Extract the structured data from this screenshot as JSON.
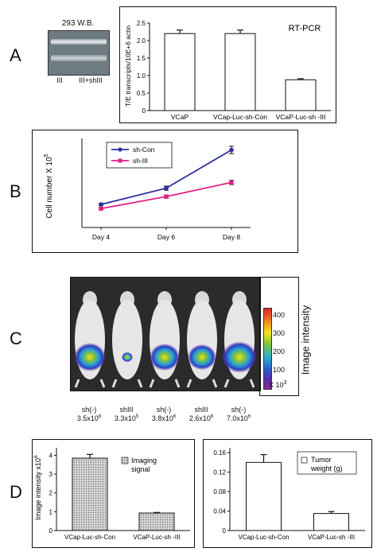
{
  "panel_letters": {
    "a": "A",
    "b": "B",
    "c": "C",
    "d": "D"
  },
  "western_blot": {
    "title": "293 W.B.",
    "lanes": [
      "III",
      "III+shIII"
    ]
  },
  "colors": {
    "sh_con": "#2b2f9e",
    "sh_iii": "#e0208a",
    "bar_fill": "#ffffff",
    "bar_stroke": "#111111"
  },
  "imaging": {
    "colorbar_label": "Image intensity",
    "colorbar_unit": "X 10",
    "colorbar_exp": "3",
    "colorbar_ticks": [
      "400",
      "300",
      "200",
      "100"
    ],
    "mice": [
      {
        "label": "sh(-)",
        "value": "3.5x10",
        "exp": "6"
      },
      {
        "label": "shIII",
        "value": "3.3x10",
        "exp": "5"
      },
      {
        "label": "sh(-)",
        "value": "3.8x10",
        "exp": "6"
      },
      {
        "label": "shIII",
        "value": "2.6x10",
        "exp": "6"
      },
      {
        "label": "sh(-)",
        "value": "7.0x10",
        "exp": "6"
      }
    ]
  },
  "chart_data": [
    {
      "id": "rt-pcr",
      "type": "bar",
      "title": "RT-PCR",
      "ylabel": "T/E transcripts/10E+6 actin",
      "categories": [
        "VCaP",
        "VCap-Luc-sh-Con",
        "VCaP-Luc-sh -III"
      ],
      "values": [
        2.2,
        2.2,
        0.88
      ],
      "errors": [
        0.1,
        0.1,
        0.03
      ],
      "ylim": [
        0,
        2.5
      ],
      "yticks": [
        "0",
        "0.5",
        "1.0",
        "1.5",
        "2.0",
        "2.5"
      ]
    },
    {
      "id": "growth",
      "type": "line",
      "ylabel": "Cell number X 10",
      "ylabel_exp": "5",
      "categories": [
        "Day 4",
        "Day 6",
        "Day 8"
      ],
      "series": [
        {
          "name": "sh-Con",
          "values": [
            4.4,
            7.5,
            14.8
          ],
          "errors": [
            0.2,
            0.4,
            0.7
          ]
        },
        {
          "name": "sh-III",
          "values": [
            3.6,
            5.9,
            8.6
          ],
          "errors": [
            0.2,
            0.3,
            0.4
          ]
        }
      ],
      "ylim": [
        0,
        17
      ]
    },
    {
      "id": "imaging-signal",
      "type": "bar",
      "ylabel": "Image intensity x10",
      "ylabel_exp": "6",
      "legend": "Imaging signal",
      "categories": [
        "VCap-Luc-sh-Con",
        "VCaP-Luc-sh -III"
      ],
      "values": [
        3.85,
        0.93
      ],
      "errors": [
        0.2,
        0.03
      ],
      "ylim": [
        0,
        4.4
      ],
      "yticks": [
        "0",
        "1",
        "2",
        "3",
        "4"
      ]
    },
    {
      "id": "tumor-weight",
      "type": "bar",
      "legend": "Tumor weight (g)",
      "categories": [
        "VCap-Luc-sh-Con",
        "VCaP-Luc-sh -III"
      ],
      "values": [
        0.14,
        0.035
      ],
      "errors": [
        0.016,
        0.004
      ],
      "ylim": [
        0,
        0.17
      ],
      "yticks": [
        "0",
        "0.04",
        "0.08",
        "0.12",
        "0.16"
      ]
    }
  ]
}
